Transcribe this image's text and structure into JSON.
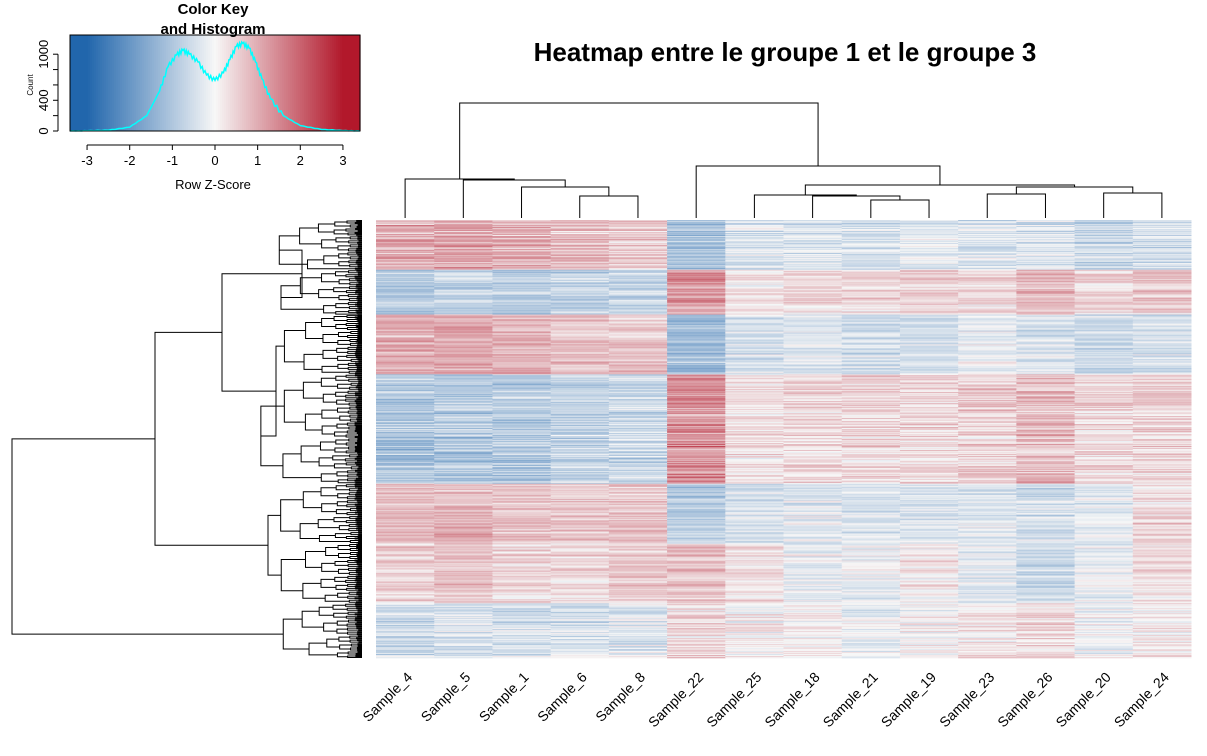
{
  "chart_data": {
    "type": "heatmap",
    "title": "Heatmap entre le groupe 1 et le groupe 3",
    "columns": [
      "Sample_4",
      "Sample_5",
      "Sample_1",
      "Sample_6",
      "Sample_8",
      "Sample_22",
      "Sample_25",
      "Sample_18",
      "Sample_21",
      "Sample_19",
      "Sample_23",
      "Sample_26",
      "Sample_20",
      "Sample_24"
    ],
    "row_clusters": [
      {
        "rows": 50,
        "profile": [
          0.9,
          1.0,
          0.9,
          0.8,
          0.6,
          -1.1,
          -0.4,
          -0.4,
          -0.5,
          -0.3,
          -0.4,
          -0.4,
          -0.6,
          -0.5
        ]
      },
      {
        "rows": 45,
        "profile": [
          -0.9,
          -0.8,
          -0.9,
          -0.8,
          -0.7,
          1.3,
          0.2,
          0.4,
          0.5,
          0.5,
          0.4,
          0.7,
          0.4,
          0.6
        ]
      },
      {
        "rows": 60,
        "profile": [
          1.0,
          1.0,
          0.9,
          0.7,
          0.7,
          -1.2,
          -0.4,
          -0.3,
          -0.5,
          -0.5,
          -0.2,
          -0.4,
          -0.6,
          -0.5
        ]
      },
      {
        "rows": 110,
        "profile": [
          -1.0,
          -0.9,
          -0.9,
          -0.7,
          -0.6,
          1.4,
          0.3,
          0.4,
          0.4,
          0.4,
          0.5,
          0.8,
          0.4,
          0.5
        ]
      },
      {
        "rows": 60,
        "profile": [
          0.8,
          0.9,
          0.7,
          0.6,
          0.7,
          -0.9,
          -0.5,
          -0.3,
          -0.5,
          -0.4,
          -0.3,
          -0.5,
          -0.3,
          0.4
        ]
      },
      {
        "rows": 60,
        "profile": [
          0.5,
          0.7,
          0.4,
          0.4,
          0.6,
          0.7,
          0.3,
          -0.2,
          -0.1,
          0.2,
          -0.3,
          -0.6,
          -0.2,
          0.3
        ]
      },
      {
        "rows": 55,
        "profile": [
          -0.6,
          -0.4,
          -0.5,
          -0.4,
          -0.3,
          0.4,
          0.1,
          0.1,
          -0.2,
          0.0,
          0.2,
          0.4,
          -0.1,
          0.1
        ]
      }
    ],
    "color_scale": {
      "min": -3,
      "max": 3,
      "low": "#2166ac",
      "mid": "#f7f7f7",
      "high": "#b2182b"
    },
    "color_key": {
      "title": "Color Key\nand Histogram",
      "title_lines": [
        "Color Key",
        "and Histogram"
      ],
      "xlabel": "Row Z-Score",
      "ylabel": "Count",
      "xticks": [
        "-3",
        "-2",
        "-1",
        "0",
        "1",
        "2",
        "3"
      ],
      "yticks": [
        "0",
        "400",
        "1000"
      ],
      "xlim": [
        -3.4,
        3.4
      ],
      "ylim": [
        0,
        1250
      ],
      "histogram_color": "#00ffff",
      "histogram": {
        "x": [
          -3.4,
          -3.0,
          -2.5,
          -2.0,
          -1.6,
          -1.3,
          -1.1,
          -0.9,
          -0.75,
          -0.6,
          -0.4,
          -0.2,
          0.0,
          0.2,
          0.35,
          0.5,
          0.65,
          0.8,
          0.95,
          1.1,
          1.3,
          1.6,
          2.0,
          2.5,
          3.0,
          3.4
        ],
        "y": [
          0,
          3,
          10,
          50,
          200,
          520,
          840,
          990,
          1050,
          1000,
          900,
          730,
          660,
          760,
          930,
          1100,
          1140,
          1080,
          900,
          680,
          420,
          200,
          70,
          20,
          5,
          0
        ]
      }
    }
  }
}
